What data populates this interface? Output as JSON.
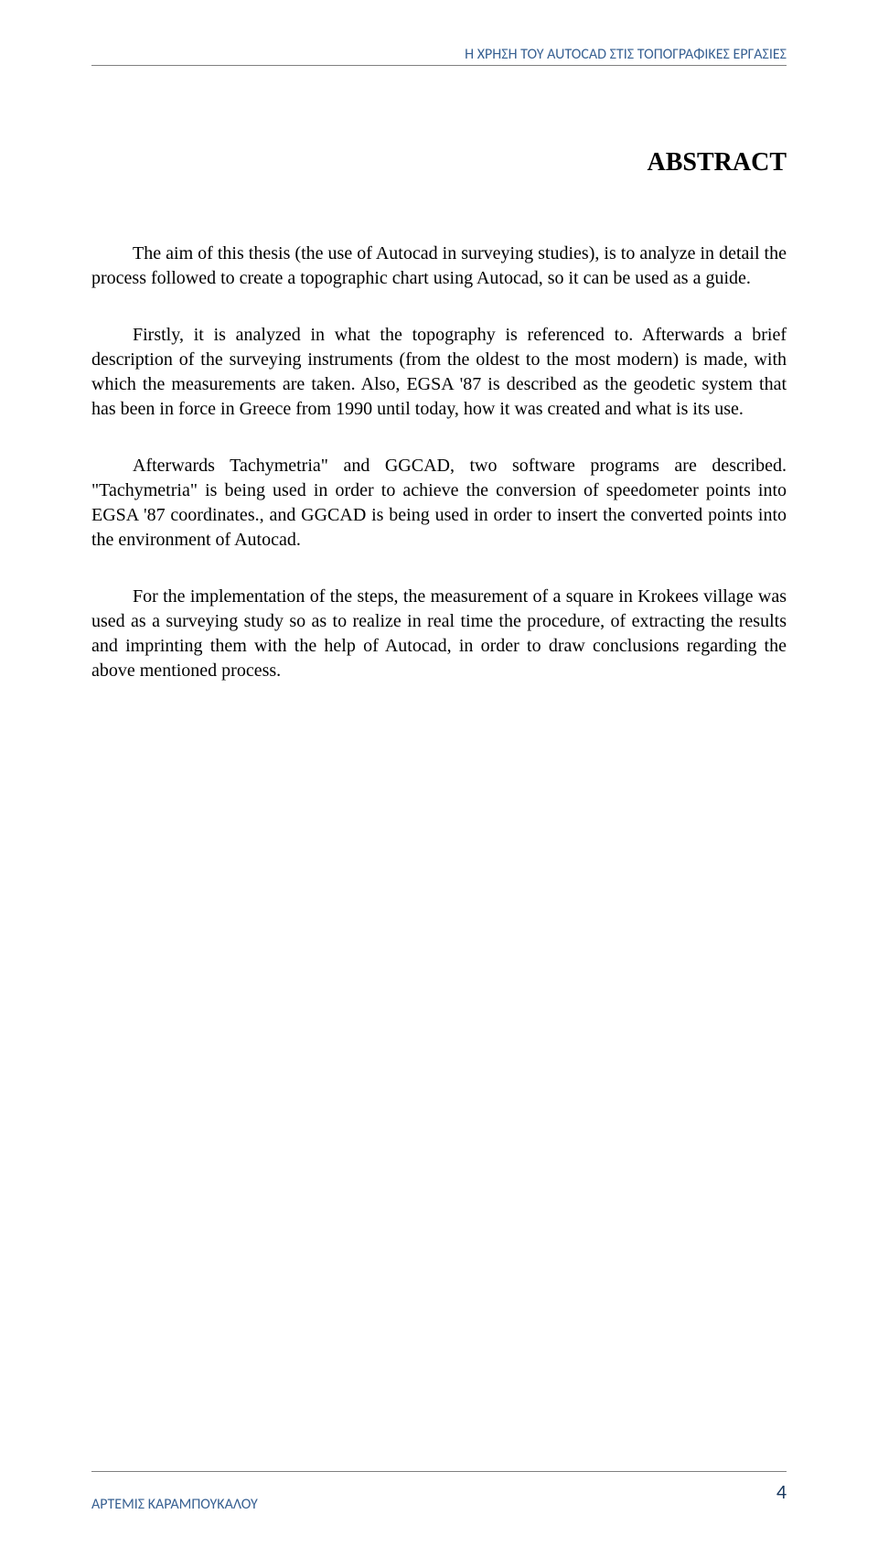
{
  "header": {
    "text": "Η ΧΡΗΣΗ ΤΟΥ AUTOCAD ΣΤΙΣ ΤΟΠΟΓΡΑΦΙΚΕΣ ΕΡΓΑΣΙΕΣ",
    "line_color": "#808080",
    "text_color": "#376092"
  },
  "title": "ABSTRACT",
  "paragraphs": [
    "The aim of this thesis (the use of Autocad in surveying studies), is to analyze in detail the process followed to create a topographic chart using Autocad, so it can be used as a guide.",
    "Firstly, it is analyzed in what the topography is referenced to. Afterwards a brief description of the surveying instruments (from the oldest to the most modern) is made, with which the measurements are taken. Also, EGSA '87 is described as the geodetic system that has been in force in Greece from 1990 until today, how it was created  and what is  its use.",
    "Afterwards Tachymetria\" and GGCAD, two software programs are described. \"Tachymetria\" is being used in order to achieve the conversion of speedometer points into EGSA '87 coordinates., and GGCAD is being used in order to insert the converted points into the environment of Autocad.",
    "For the implementation of the steps, the measurement of a square in Krokees village was used as a surveying study so as to realize in real time the procedure, of extracting the results and imprinting them with the help of Autocad, in order to draw conclusions regarding the above mentioned process."
  ],
  "footer": {
    "author": "ΑΡΤΕΜΙΣ ΚΑΡΑΜΠΟΥΚΑΛΟΥ",
    "page_number": "4",
    "author_color": "#376092",
    "page_color": "#17375e"
  },
  "styling": {
    "background_color": "#ffffff",
    "body_font": "Palatino Linotype",
    "header_font": "Calibri",
    "title_fontsize": 28,
    "body_fontsize": 20,
    "header_fontsize": 16,
    "page_number_fontsize": 22
  }
}
